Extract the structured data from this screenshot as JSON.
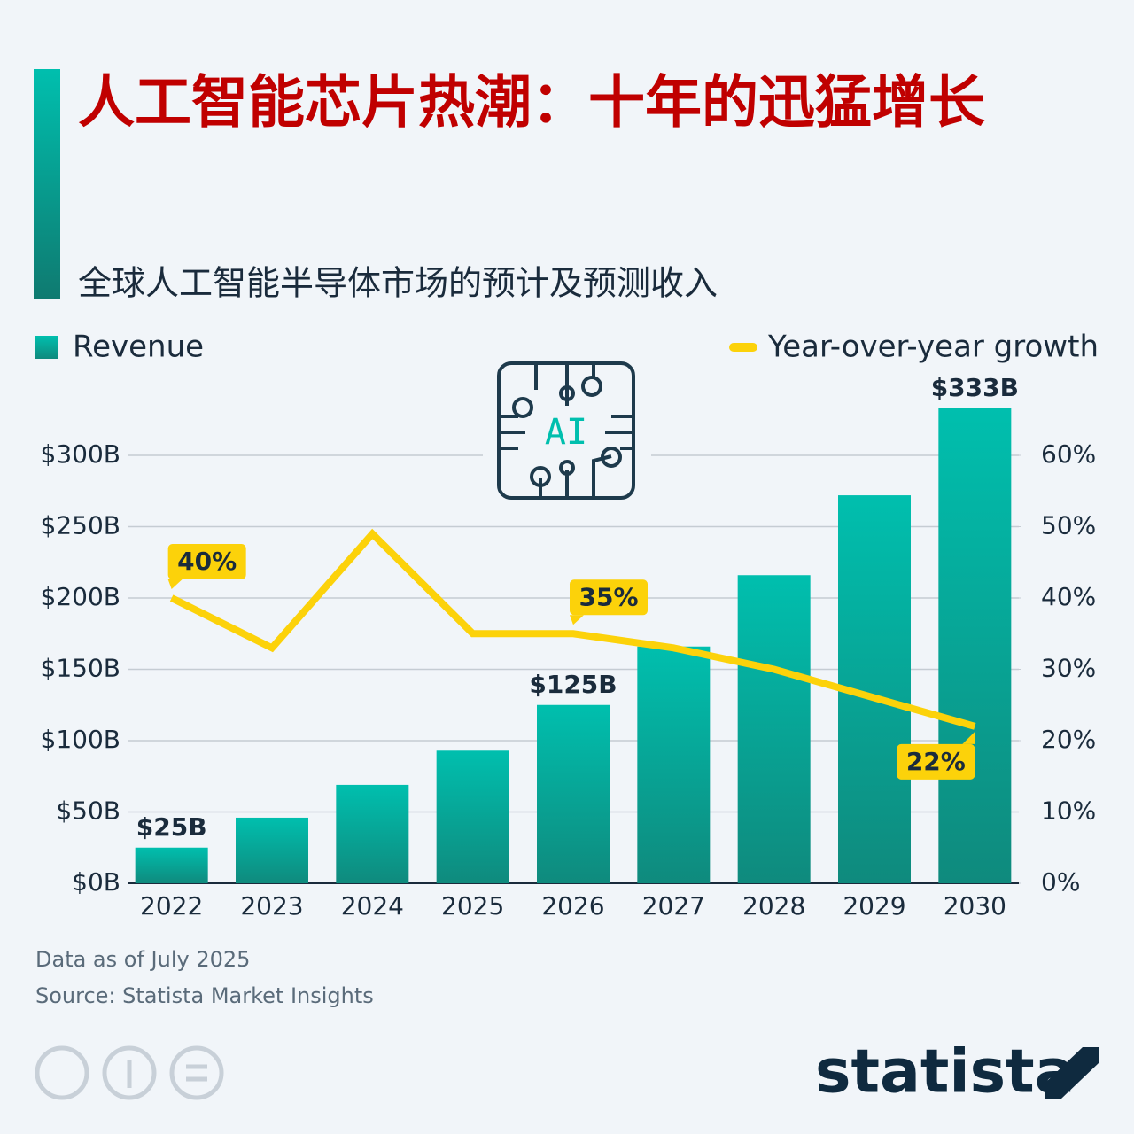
{
  "chart_data": {
    "type": "bar",
    "title": "人工智能芯片热潮：十年的迅猛增长",
    "subtitle": "全球人工智能半导体市场的预计及预测收入",
    "icon_text": "AI",
    "categories": [
      "2022",
      "2023",
      "2024",
      "2025",
      "2026",
      "2027",
      "2028",
      "2029",
      "2030"
    ],
    "series": [
      {
        "name": "Revenue",
        "type": "bar",
        "color": "#00bfae",
        "values": [
          25,
          46,
          69,
          93,
          125,
          166,
          216,
          272,
          333
        ],
        "value_labels": [
          "$25B",
          null,
          null,
          null,
          "$125B",
          null,
          null,
          null,
          "$333B"
        ]
      },
      {
        "name": "Year-over-year growth",
        "type": "line",
        "axis": "y2",
        "color": "#fcd20a",
        "values": [
          40,
          33,
          49,
          35,
          35,
          33,
          30,
          26,
          22
        ],
        "value_labels": [
          "40%",
          null,
          null,
          null,
          "35%",
          null,
          null,
          null,
          "22%"
        ]
      }
    ],
    "ylim": [
      0,
      300
    ],
    "yticks": [
      {
        "value": 0,
        "label": "$0B"
      },
      {
        "value": 50,
        "label": "$50B"
      },
      {
        "value": 100,
        "label": "$100B"
      },
      {
        "value": 150,
        "label": "$150B"
      },
      {
        "value": 200,
        "label": "$200B"
      },
      {
        "value": 250,
        "label": "$250B"
      },
      {
        "value": 300,
        "label": "$300B"
      }
    ],
    "y2lim": [
      0,
      60
    ],
    "y2ticks": [
      {
        "value": 0,
        "label": "0%"
      },
      {
        "value": 10,
        "label": "10%"
      },
      {
        "value": 20,
        "label": "20%"
      },
      {
        "value": 30,
        "label": "30%"
      },
      {
        "value": 40,
        "label": "40%"
      },
      {
        "value": 50,
        "label": "50%"
      },
      {
        "value": 60,
        "label": "60%"
      }
    ],
    "grid": true,
    "notes": [
      "Data as of July 2025",
      "Source: Statista Market Insights"
    ],
    "brand": "statista"
  }
}
